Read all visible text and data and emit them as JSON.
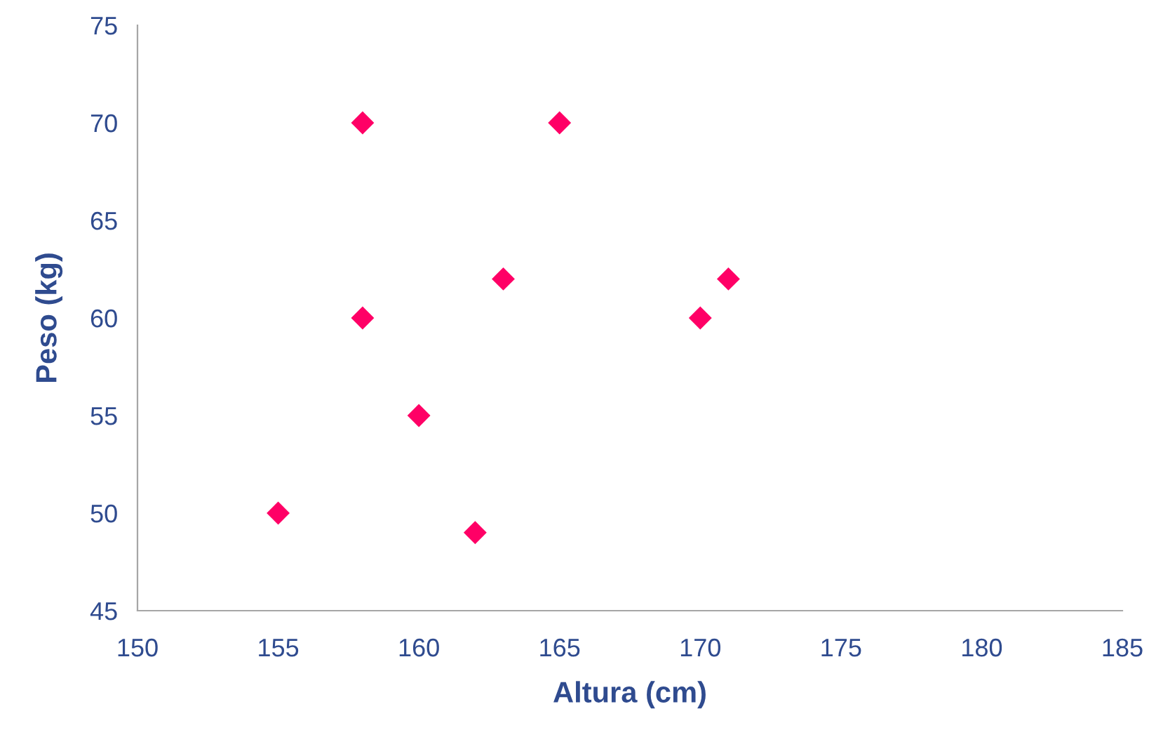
{
  "chart_data": {
    "type": "scatter",
    "xlabel": "Altura (cm)",
    "ylabel": "Peso (kg)",
    "x": [
      155,
      158,
      158,
      160,
      162,
      163,
      165,
      170,
      171
    ],
    "values": [
      50,
      70,
      60,
      55,
      49,
      62,
      70,
      60,
      62
    ],
    "color": "#ff0066",
    "marker": "diamond",
    "xlim": [
      150,
      185
    ],
    "xticks": [
      150,
      155,
      160,
      165,
      170,
      175,
      180,
      185
    ],
    "ylim": [
      45,
      75
    ],
    "yticks": [
      45,
      50,
      55,
      60,
      65,
      70,
      75
    ],
    "grid": false,
    "legend": false
  }
}
